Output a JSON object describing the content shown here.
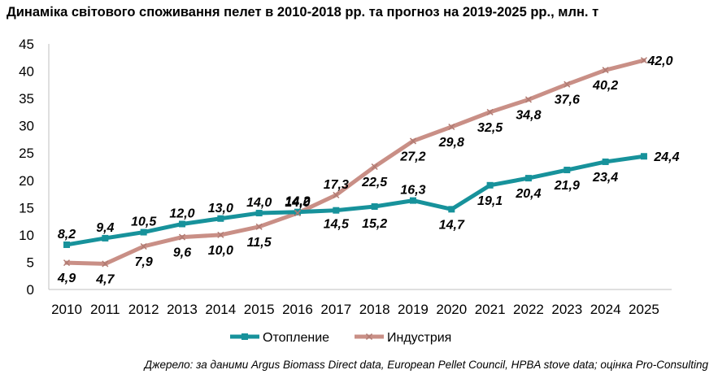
{
  "chart_data": {
    "type": "line",
    "title": "Динаміка світового споживання пелет в 2010-2018 рр. та прогноз на 2019-2025 рр., млн. т",
    "x": [
      "2010",
      "2011",
      "2012",
      "2013",
      "2014",
      "2015",
      "2016",
      "2017",
      "2018",
      "2019",
      "2020",
      "2021",
      "2022",
      "2023",
      "2024",
      "2025"
    ],
    "series": [
      {
        "name": "Отопление",
        "color": "#17929b",
        "values": [
          8.2,
          9.4,
          10.5,
          12.0,
          13.0,
          14.0,
          14.2,
          14.5,
          15.2,
          16.3,
          14.7,
          19.1,
          20.4,
          21.9,
          23.4,
          24.4
        ],
        "labels": [
          "8,2",
          "9,4",
          "10,5",
          "12,0",
          "13,0",
          "14,0",
          "14,2",
          "14,5",
          "15,2",
          "16,3",
          "14,7",
          "19,1",
          "20,4",
          "21,9",
          "23,4",
          "24,4"
        ]
      },
      {
        "name": "Индустрия",
        "color": "#c98f86",
        "values": [
          4.9,
          4.7,
          7.9,
          9.6,
          10.0,
          11.5,
          14.0,
          17.3,
          22.5,
          27.2,
          29.8,
          32.5,
          34.8,
          37.6,
          40.2,
          42.0
        ],
        "labels": [
          "4,9",
          "4,7",
          "7,9",
          "9,6",
          "10,0",
          "11,5",
          "14,0",
          "17,3",
          "22,5",
          "27,2",
          "29,8",
          "32,5",
          "34,8",
          "37,6",
          "40,2",
          "42,0"
        ]
      }
    ],
    "ylim": [
      0,
      45
    ],
    "yticks": [
      "0",
      "5",
      "10",
      "15",
      "20",
      "25",
      "30",
      "35",
      "40",
      "45"
    ],
    "ytick_values": [
      0,
      5,
      10,
      15,
      20,
      25,
      30,
      35,
      40,
      45
    ],
    "grid": false,
    "legend": "bottom"
  },
  "source": "Джерело: за даними Argus Biomass Direct data, European Pellet Council, HPBA stove data; оцінка Pro-Consulting"
}
